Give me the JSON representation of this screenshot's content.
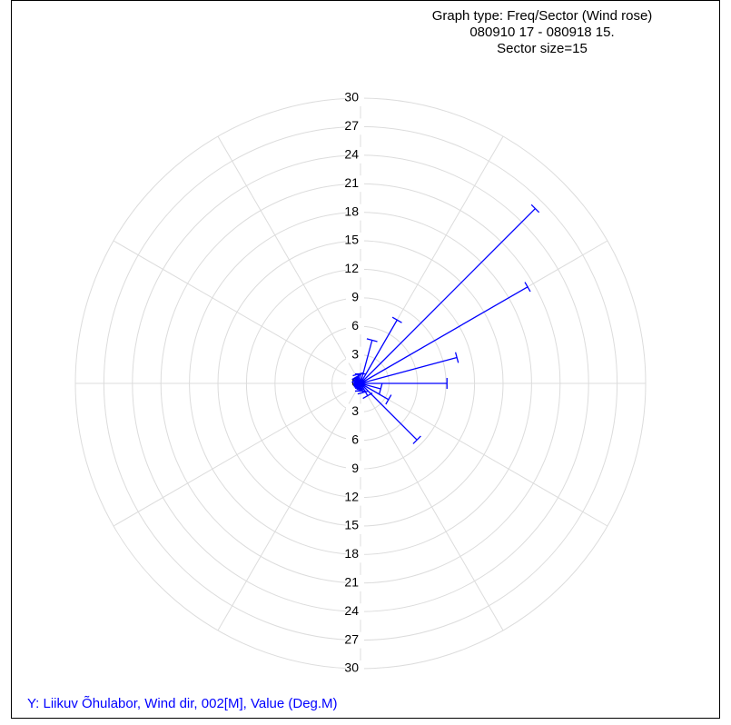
{
  "chart_data": {
    "type": "windrose",
    "title": [
      "Graph type: Freq/Sector (Wind rose)",
      "080910 17 - 080918 15.",
      "Sector size=15"
    ],
    "footer": "Y: Liikuv Õhulabor, Wind dir, 002[M], Value (Deg.M)",
    "x": [
      0,
      15,
      30,
      45,
      60,
      75,
      90,
      105,
      120,
      135,
      150,
      165,
      180,
      195,
      210,
      225,
      240,
      255,
      270,
      285,
      300,
      315,
      330,
      345
    ],
    "values": [
      1,
      4.7,
      7.7,
      26,
      20.3,
      10.5,
      9.1,
      2.2,
      3.4,
      8.4,
      1.5,
      1,
      0.8,
      0.5,
      0.5,
      0.5,
      0.5,
      0.5,
      0.5,
      0.5,
      0.5,
      0.7,
      0.8,
      1
    ],
    "color": "#0000ff",
    "ylim": [
      0,
      30
    ],
    "yticks": [
      0,
      3,
      6,
      9,
      12,
      15,
      18,
      21,
      24,
      27,
      30
    ],
    "grid": true
  }
}
